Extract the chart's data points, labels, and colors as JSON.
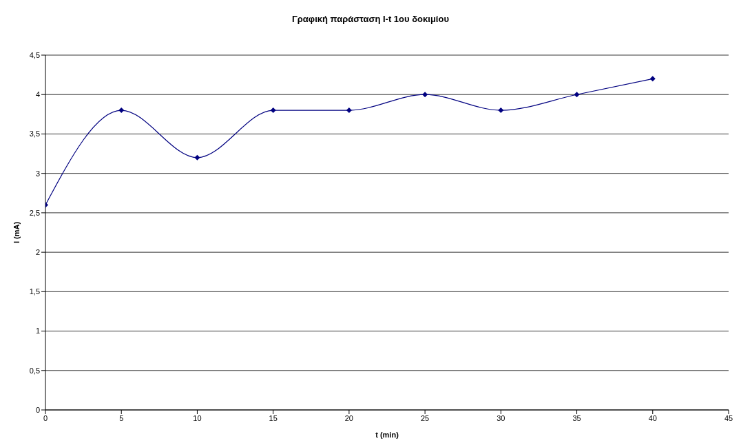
{
  "chart_data": {
    "type": "line",
    "title": "Γραφική παράσταση I-t 1ου δοκιμίου",
    "xlabel": "t (min)",
    "ylabel": "I (mA)",
    "x": [
      0,
      5,
      10,
      15,
      20,
      25,
      30,
      35,
      40
    ],
    "series": [
      {
        "color": "#000080",
        "values": [
          2.6,
          3.8,
          3.2,
          3.8,
          3.8,
          4.0,
          3.8,
          4.0,
          4.2
        ]
      }
    ],
    "xlim": [
      0,
      45
    ],
    "xticks": [
      0,
      5,
      10,
      15,
      20,
      25,
      30,
      35,
      40,
      45
    ],
    "ylim": [
      0,
      4.5
    ],
    "yticks": [
      0,
      {
        "value": 0.5,
        "label": "0,5"
      },
      1,
      {
        "value": 1.5,
        "label": "1,5"
      },
      2,
      {
        "value": 2.5,
        "label": "2,5"
      },
      3,
      {
        "value": 3.5,
        "label": "3,5"
      },
      4,
      {
        "value": 4.5,
        "label": "4,5"
      }
    ],
    "grid": "y",
    "legend": false,
    "marker": "diamond",
    "line_style": "solid"
  }
}
